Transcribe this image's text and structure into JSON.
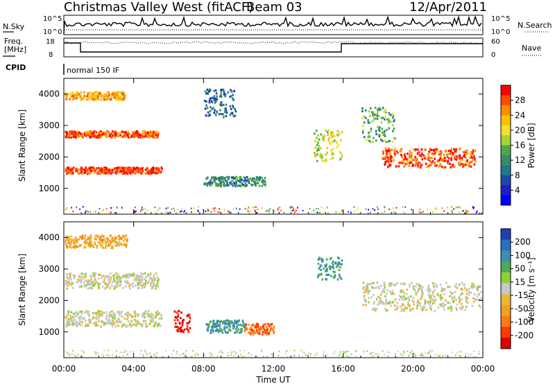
{
  "header": {
    "radar_title": "Christmas Valley West (fitACF)",
    "beam": "Beam 03",
    "date": "12/Apr/2011"
  },
  "status_panels": {
    "nsky_label": "N.Sky",
    "nsky_ticks": [
      "10^5",
      "10^0"
    ],
    "nsearch_label": "N.Search",
    "nsearch_ticks": [
      "10^5",
      "10^0"
    ],
    "freq_label_1": "Freq.",
    "freq_label_2": "[MHz]",
    "freq_ticks": [
      "18",
      "8"
    ],
    "nave_label": "Nave",
    "nave_ticks": [
      "60",
      "0"
    ],
    "cpid_label": "CPID",
    "cpid_value": "normal 150 IF"
  },
  "chart_data": [
    {
      "type": "heatmap",
      "name": "power-panel",
      "ylabel": "Slant Range [km]",
      "xlabel": "",
      "ylim": [
        180,
        4500
      ],
      "y_ticks": [
        1000,
        2000,
        3000,
        4000
      ],
      "colorbar": {
        "label": "Power [dB]",
        "ticks": [
          "28",
          "24",
          "20",
          "16",
          "12",
          "8",
          "4"
        ],
        "colors": [
          "#ff0000",
          "#ff4a00",
          "#ff8c00",
          "#ffc000",
          "#f0e030",
          "#a6d33a",
          "#4ea84a",
          "#3a8a6a",
          "#1e7a8a",
          "#1e4aa6",
          "#1e1ec8",
          "#0000ff"
        ]
      },
      "features": [
        {
          "desc": "band",
          "t0": 0.05,
          "t1": 5.6,
          "r0": 1500,
          "r1": 1700,
          "level": 0.95
        },
        {
          "desc": "band",
          "t0": 0.05,
          "t1": 5.4,
          "r0": 2650,
          "r1": 2850,
          "level": 0.9
        },
        {
          "desc": "band",
          "t0": 0.05,
          "t1": 3.5,
          "r0": 3850,
          "r1": 4100,
          "level": 0.75
        },
        {
          "desc": "band",
          "t0": 8.0,
          "t1": 11.5,
          "r0": 1100,
          "r1": 1400,
          "level": 0.35
        },
        {
          "desc": "band",
          "t0": 8.0,
          "t1": 9.8,
          "r0": 3300,
          "r1": 4200,
          "level": 0.25
        },
        {
          "desc": "band",
          "t0": 14.3,
          "t1": 15.9,
          "r0": 1900,
          "r1": 2900,
          "level": 0.6
        },
        {
          "desc": "band",
          "t0": 18.2,
          "t1": 23.6,
          "r0": 1700,
          "r1": 2300,
          "level": 0.92
        },
        {
          "desc": "band",
          "t0": 17.0,
          "t1": 19.0,
          "r0": 2500,
          "r1": 3600,
          "level": 0.45
        }
      ]
    },
    {
      "type": "heatmap",
      "name": "velocity-panel",
      "xlabel": "Time UT",
      "ylabel": "Slant Range [km]",
      "ylim": [
        180,
        4500
      ],
      "y_ticks": [
        1000,
        2000,
        3000,
        4000
      ],
      "x_ticks": [
        "00:00",
        "04:00",
        "08:00",
        "12:00",
        "16:00",
        "20:00",
        "00:00"
      ],
      "xlim_hours": [
        0,
        24
      ],
      "colorbar": {
        "label": "Velocity [m s⁻¹]",
        "ticks": [
          "200",
          "100",
          "50",
          "15",
          "-15",
          "-50",
          "-100",
          "-200"
        ],
        "colors": [
          "#1e3fb4",
          "#2c6ec4",
          "#3b8fb0",
          "#4caa58",
          "#8cd234",
          "#c8c8c8",
          "#e8b838",
          "#f0a020",
          "#ff7a10",
          "#ff3a00",
          "#e00000"
        ]
      },
      "features": [
        {
          "desc": "band",
          "t0": 0.05,
          "t1": 5.6,
          "r0": 1200,
          "r1": 1700,
          "vel": 0.0
        },
        {
          "desc": "band",
          "t0": 0.05,
          "t1": 5.4,
          "r0": 2400,
          "r1": 2900,
          "vel": 0.0
        },
        {
          "desc": "band",
          "t0": 0.05,
          "t1": 3.6,
          "r0": 3700,
          "r1": 4100,
          "vel": -0.35
        },
        {
          "desc": "band",
          "t0": 6.3,
          "t1": 7.2,
          "r0": 1000,
          "r1": 1700,
          "vel": -1.0
        },
        {
          "desc": "band",
          "t0": 10.3,
          "t1": 12.0,
          "r0": 950,
          "r1": 1300,
          "vel": -0.65
        },
        {
          "desc": "band",
          "t0": 8.1,
          "t1": 10.3,
          "r0": 1000,
          "r1": 1400,
          "vel": 0.55
        },
        {
          "desc": "band",
          "t0": 14.5,
          "t1": 15.9,
          "r0": 2700,
          "r1": 3400,
          "vel": 0.5
        },
        {
          "desc": "band",
          "t0": 17.1,
          "t1": 23.9,
          "r0": 1700,
          "r1": 2600,
          "vel": 0.0
        }
      ]
    }
  ]
}
